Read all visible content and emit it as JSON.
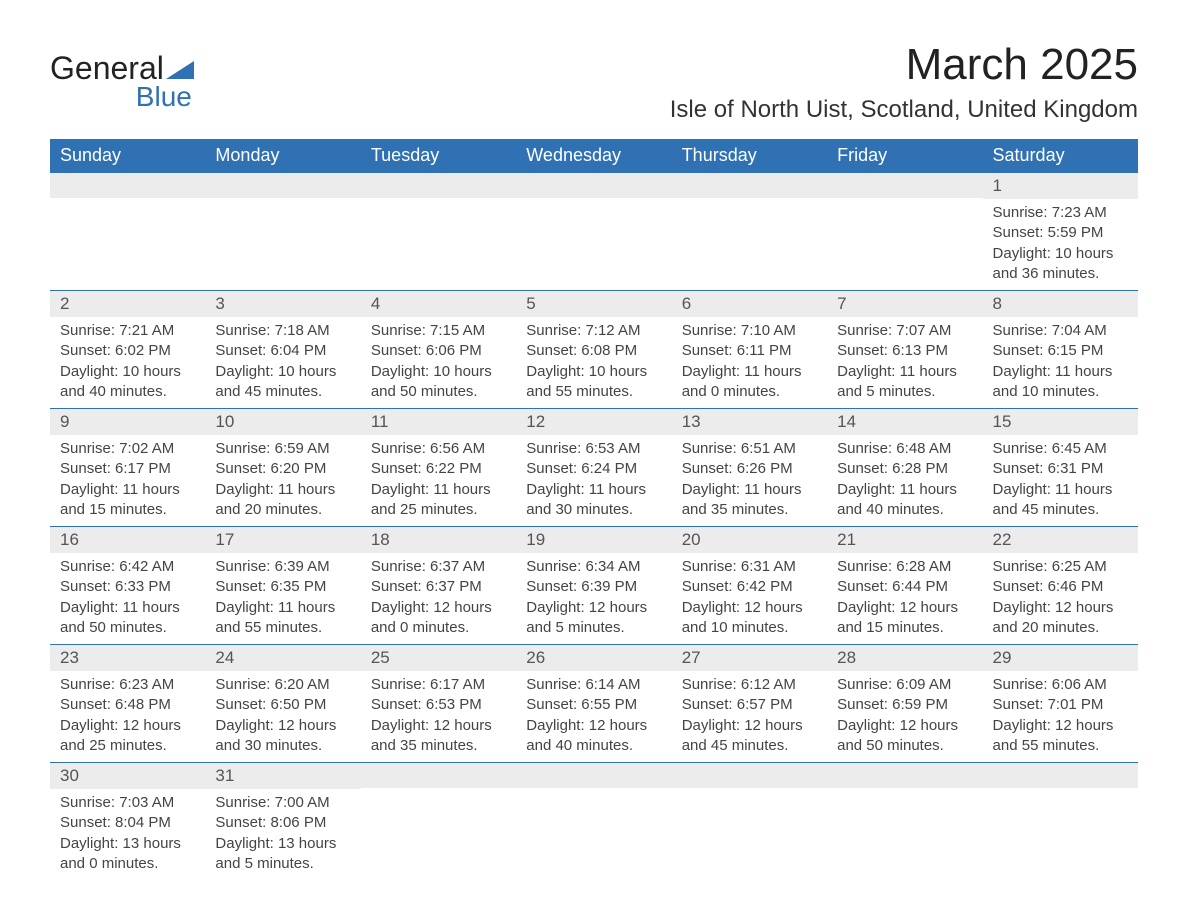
{
  "logo": {
    "text1": "General",
    "text2": "Blue"
  },
  "title": "March 2025",
  "location": "Isle of North Uist, Scotland, United Kingdom",
  "colors": {
    "header_bg": "#2f71b3",
    "header_text": "#ffffff",
    "daynum_bg": "#ececec",
    "border": "#2f71b3",
    "body_text": "#444444"
  },
  "weekday_labels": [
    "Sunday",
    "Monday",
    "Tuesday",
    "Wednesday",
    "Thursday",
    "Friday",
    "Saturday"
  ],
  "weeks": [
    [
      null,
      null,
      null,
      null,
      null,
      null,
      {
        "n": "1",
        "sunrise": "7:23 AM",
        "sunset": "5:59 PM",
        "daylight": "10 hours and 36 minutes."
      }
    ],
    [
      {
        "n": "2",
        "sunrise": "7:21 AM",
        "sunset": "6:02 PM",
        "daylight": "10 hours and 40 minutes."
      },
      {
        "n": "3",
        "sunrise": "7:18 AM",
        "sunset": "6:04 PM",
        "daylight": "10 hours and 45 minutes."
      },
      {
        "n": "4",
        "sunrise": "7:15 AM",
        "sunset": "6:06 PM",
        "daylight": "10 hours and 50 minutes."
      },
      {
        "n": "5",
        "sunrise": "7:12 AM",
        "sunset": "6:08 PM",
        "daylight": "10 hours and 55 minutes."
      },
      {
        "n": "6",
        "sunrise": "7:10 AM",
        "sunset": "6:11 PM",
        "daylight": "11 hours and 0 minutes."
      },
      {
        "n": "7",
        "sunrise": "7:07 AM",
        "sunset": "6:13 PM",
        "daylight": "11 hours and 5 minutes."
      },
      {
        "n": "8",
        "sunrise": "7:04 AM",
        "sunset": "6:15 PM",
        "daylight": "11 hours and 10 minutes."
      }
    ],
    [
      {
        "n": "9",
        "sunrise": "7:02 AM",
        "sunset": "6:17 PM",
        "daylight": "11 hours and 15 minutes."
      },
      {
        "n": "10",
        "sunrise": "6:59 AM",
        "sunset": "6:20 PM",
        "daylight": "11 hours and 20 minutes."
      },
      {
        "n": "11",
        "sunrise": "6:56 AM",
        "sunset": "6:22 PM",
        "daylight": "11 hours and 25 minutes."
      },
      {
        "n": "12",
        "sunrise": "6:53 AM",
        "sunset": "6:24 PM",
        "daylight": "11 hours and 30 minutes."
      },
      {
        "n": "13",
        "sunrise": "6:51 AM",
        "sunset": "6:26 PM",
        "daylight": "11 hours and 35 minutes."
      },
      {
        "n": "14",
        "sunrise": "6:48 AM",
        "sunset": "6:28 PM",
        "daylight": "11 hours and 40 minutes."
      },
      {
        "n": "15",
        "sunrise": "6:45 AM",
        "sunset": "6:31 PM",
        "daylight": "11 hours and 45 minutes."
      }
    ],
    [
      {
        "n": "16",
        "sunrise": "6:42 AM",
        "sunset": "6:33 PM",
        "daylight": "11 hours and 50 minutes."
      },
      {
        "n": "17",
        "sunrise": "6:39 AM",
        "sunset": "6:35 PM",
        "daylight": "11 hours and 55 minutes."
      },
      {
        "n": "18",
        "sunrise": "6:37 AM",
        "sunset": "6:37 PM",
        "daylight": "12 hours and 0 minutes."
      },
      {
        "n": "19",
        "sunrise": "6:34 AM",
        "sunset": "6:39 PM",
        "daylight": "12 hours and 5 minutes."
      },
      {
        "n": "20",
        "sunrise": "6:31 AM",
        "sunset": "6:42 PM",
        "daylight": "12 hours and 10 minutes."
      },
      {
        "n": "21",
        "sunrise": "6:28 AM",
        "sunset": "6:44 PM",
        "daylight": "12 hours and 15 minutes."
      },
      {
        "n": "22",
        "sunrise": "6:25 AM",
        "sunset": "6:46 PM",
        "daylight": "12 hours and 20 minutes."
      }
    ],
    [
      {
        "n": "23",
        "sunrise": "6:23 AM",
        "sunset": "6:48 PM",
        "daylight": "12 hours and 25 minutes."
      },
      {
        "n": "24",
        "sunrise": "6:20 AM",
        "sunset": "6:50 PM",
        "daylight": "12 hours and 30 minutes."
      },
      {
        "n": "25",
        "sunrise": "6:17 AM",
        "sunset": "6:53 PM",
        "daylight": "12 hours and 35 minutes."
      },
      {
        "n": "26",
        "sunrise": "6:14 AM",
        "sunset": "6:55 PM",
        "daylight": "12 hours and 40 minutes."
      },
      {
        "n": "27",
        "sunrise": "6:12 AM",
        "sunset": "6:57 PM",
        "daylight": "12 hours and 45 minutes."
      },
      {
        "n": "28",
        "sunrise": "6:09 AM",
        "sunset": "6:59 PM",
        "daylight": "12 hours and 50 minutes."
      },
      {
        "n": "29",
        "sunrise": "6:06 AM",
        "sunset": "7:01 PM",
        "daylight": "12 hours and 55 minutes."
      }
    ],
    [
      {
        "n": "30",
        "sunrise": "7:03 AM",
        "sunset": "8:04 PM",
        "daylight": "13 hours and 0 minutes."
      },
      {
        "n": "31",
        "sunrise": "7:00 AM",
        "sunset": "8:06 PM",
        "daylight": "13 hours and 5 minutes."
      },
      null,
      null,
      null,
      null,
      null
    ]
  ],
  "labels": {
    "sunrise_prefix": "Sunrise: ",
    "sunset_prefix": "Sunset: ",
    "daylight_prefix": "Daylight: "
  }
}
